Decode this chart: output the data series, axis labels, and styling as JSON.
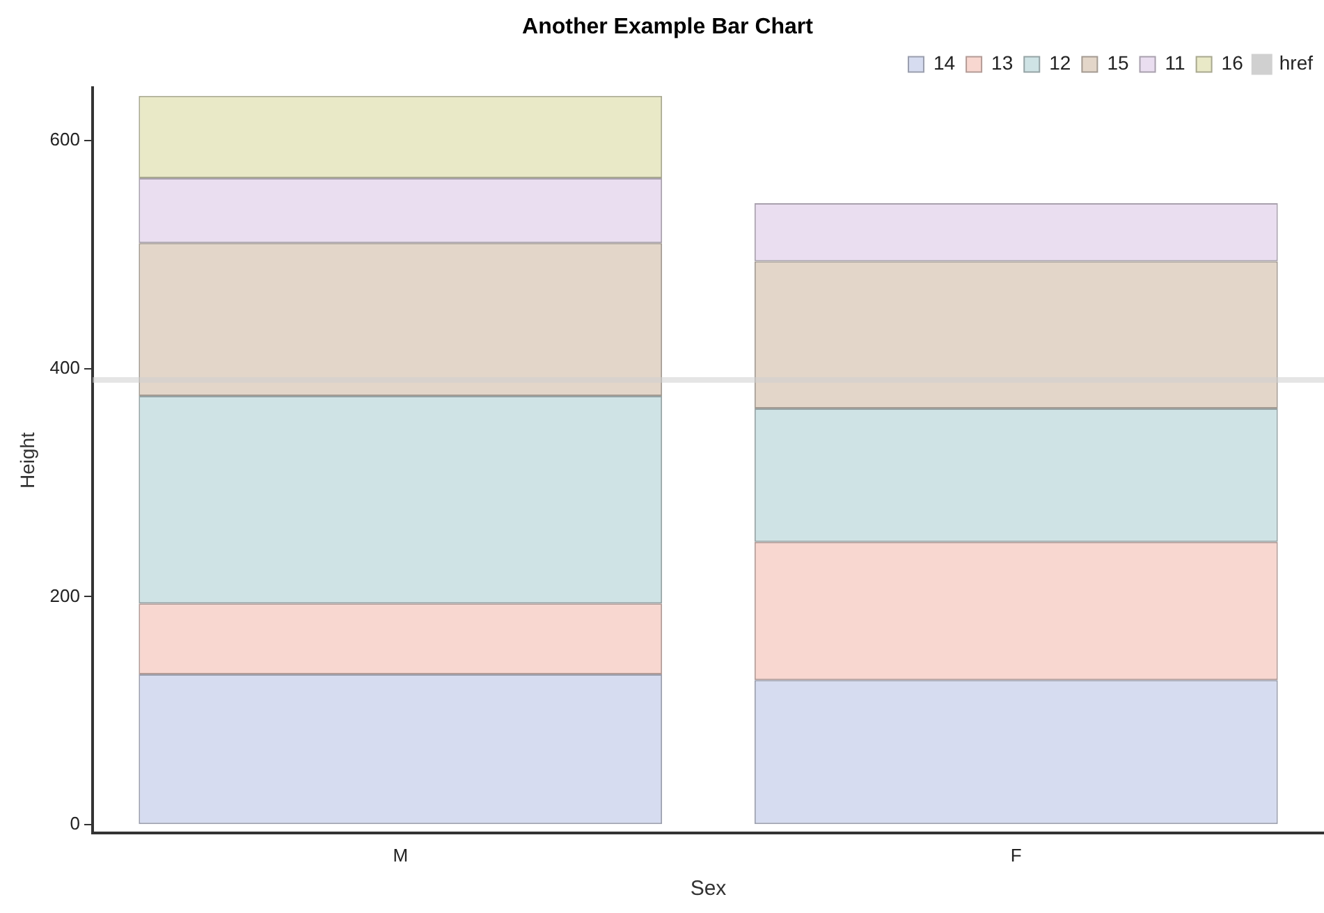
{
  "chart_data": {
    "type": "bar",
    "title": "Another Example Bar Chart",
    "xlabel": "Sex",
    "ylabel": "Height",
    "categories": [
      "M",
      "F"
    ],
    "stacked": true,
    "series": [
      {
        "name": "14",
        "color": "#d6dcf0",
        "values": [
          132,
          127
        ]
      },
      {
        "name": "13",
        "color": "#f8d7d0",
        "values": [
          62,
          121
        ]
      },
      {
        "name": "12",
        "color": "#cfe3e5",
        "values": [
          182,
          117
        ]
      },
      {
        "name": "15",
        "color": "#e3d6c9",
        "values": [
          134,
          129
        ]
      },
      {
        "name": "11",
        "color": "#eadef0",
        "values": [
          57,
          51
        ]
      },
      {
        "name": "16",
        "color": "#e9e9c7",
        "values": [
          72,
          null
        ]
      }
    ],
    "ylim": [
      -7,
      646
    ],
    "yticks": [
      0,
      200,
      400,
      600
    ],
    "grid": false,
    "legend": "top right",
    "ref_lines": [
      {
        "axis": "y",
        "value": 390,
        "label": "href",
        "color": "#d0d0d0"
      }
    ]
  }
}
